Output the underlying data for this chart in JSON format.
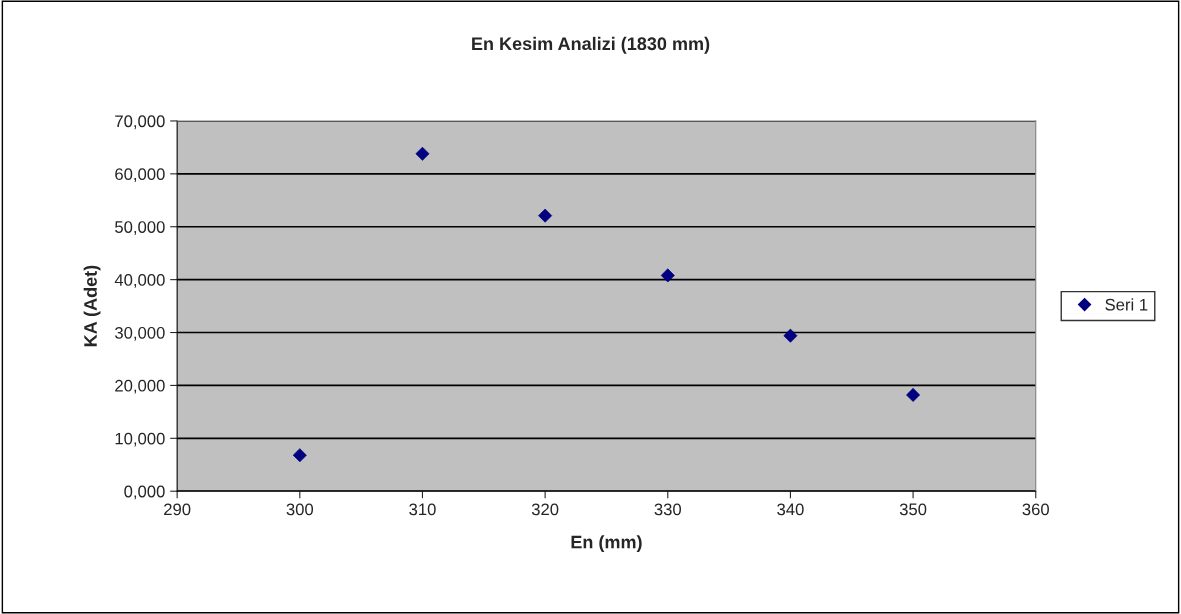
{
  "chart_data": {
    "type": "scatter",
    "title": "En Kesim Analizi (1830 mm)",
    "xlabel": "En (mm)",
    "ylabel": "KA (Adet)",
    "x": [
      300,
      310,
      320,
      330,
      340,
      350
    ],
    "series": [
      {
        "name": "Seri 1",
        "color": "#000080",
        "values": [
          6800,
          63800,
          52100,
          40800,
          29400,
          18200
        ]
      }
    ],
    "xlim": [
      290,
      360
    ],
    "xticks": [
      290,
      300,
      310,
      320,
      330,
      340,
      350,
      360
    ],
    "ylim": [
      0,
      70000
    ],
    "yticks": [
      {
        "value": 0,
        "label": "0,000"
      },
      {
        "value": 10000,
        "label": "10,000"
      },
      {
        "value": 20000,
        "label": "20,000"
      },
      {
        "value": 30000,
        "label": "30,000"
      },
      {
        "value": 40000,
        "label": "40,000"
      },
      {
        "value": 50000,
        "label": "50,000"
      },
      {
        "value": 60000,
        "label": "60,000"
      },
      {
        "value": 70000,
        "label": "70,000"
      }
    ],
    "grid": "y",
    "legend": "right",
    "marker": "diamond"
  }
}
